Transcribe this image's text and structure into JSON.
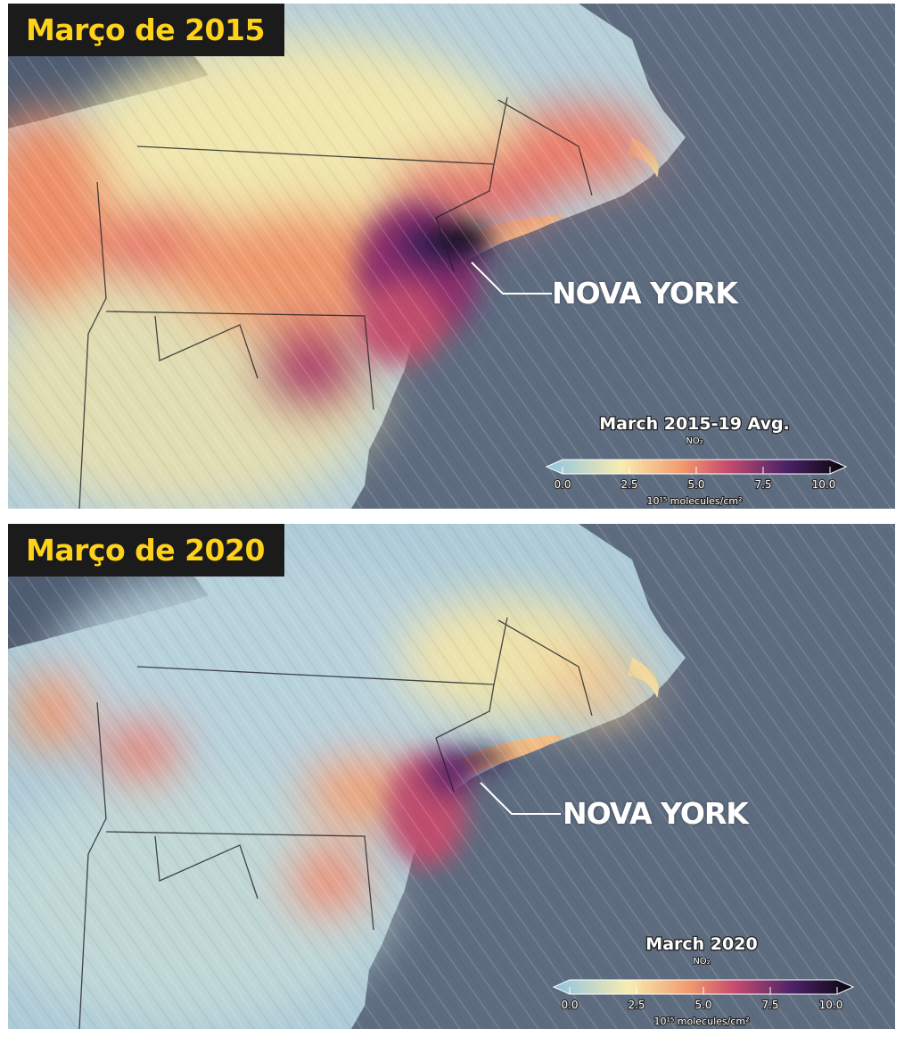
{
  "panels": [
    {
      "title": "Março de 2015",
      "city_label": "NOVA YORK",
      "legend": {
        "title": "March 2015-19 Avg.",
        "subtitle": "NO₂",
        "ticks": [
          "0.0",
          "2.5",
          "5.0",
          "7.5",
          "10.0"
        ],
        "unit": "10¹⁵ molecules/cm²"
      }
    },
    {
      "title": "Março de 2020",
      "city_label": "NOVA YORK",
      "legend": {
        "title": "March 2020",
        "subtitle": "NO₂",
        "ticks": [
          "0.0",
          "2.5",
          "5.0",
          "7.5",
          "10.0"
        ],
        "unit": "10¹⁵ molecules/cm²"
      }
    }
  ],
  "colors": {
    "ocean": "#5e6c80",
    "land_low": "#a9c7d6",
    "land_mid": "#f3e4a4",
    "no2_moderate": "#f0956a",
    "no2_high": "#c24d6e",
    "no2_very_high": "#4e1f62",
    "no2_max": "#0c0a12",
    "title_text": "#ffd21a",
    "title_background": "#1b1b1b"
  }
}
